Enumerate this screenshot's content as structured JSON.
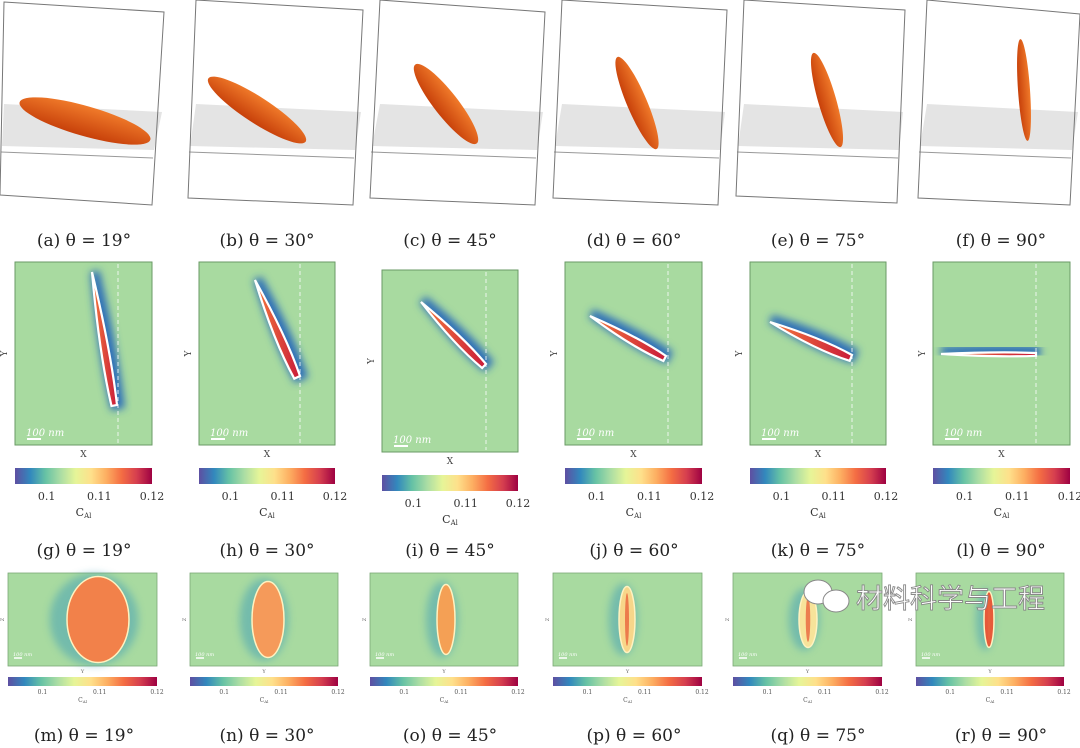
{
  "figure": {
    "thetas": [
      19,
      30,
      45,
      60,
      75,
      90
    ],
    "row1_captions": [
      "(a) θ = 19°",
      "(b) θ = 30°",
      "(c) θ = 45°",
      "(d) θ = 60°",
      "(e) θ = 75°",
      "(f) θ = 90°"
    ],
    "row2_captions": [
      "(g) θ = 19°",
      "(h) θ = 30°",
      "(i) θ = 45°",
      "(j) θ = 60°",
      "(k) θ = 75°",
      "(l) θ = 90°"
    ],
    "row3_captions": [
      "(m) θ = 19°",
      "(n) θ = 30°",
      "(o) θ = 45°",
      "(p) θ = 60°",
      "(q) θ = 75°",
      "(r) θ = 90°"
    ],
    "row2_axes": {
      "x": "X",
      "y": "Y"
    },
    "row3_axes": {
      "x": "Y",
      "y": "Z"
    },
    "colorbar": {
      "label": "C",
      "label_sub": "Al",
      "ticks": [
        "0.1",
        "0.11",
        "0.12"
      ],
      "tick_values": [
        0.1,
        0.11,
        0.12
      ],
      "range": [
        0.094,
        0.12
      ],
      "colormap": [
        "#5e4fa2",
        "#3288bd",
        "#66c2a5",
        "#abdda4",
        "#e6f598",
        "#fee08b",
        "#fdae61",
        "#f46d43",
        "#d53e4f",
        "#9e0142"
      ]
    },
    "scale_bar": "100 nm",
    "colors": {
      "matrix": "#a8daa0",
      "precipitate_3d": "#e2560f",
      "plane": "#e4e4e4"
    },
    "watermark": "材料科学与工程"
  }
}
